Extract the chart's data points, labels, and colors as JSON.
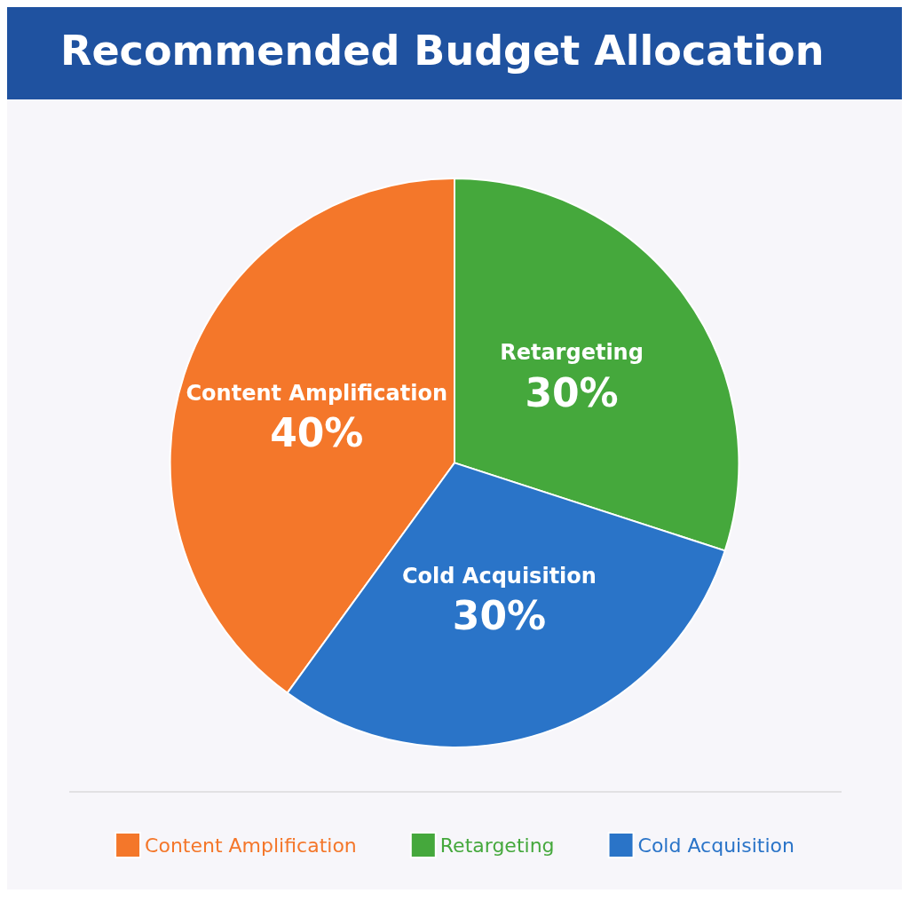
{
  "chart_data": {
    "type": "pie",
    "title": "Recommended Budget Allocation",
    "categories": [
      "Content Amplification",
      "Retargeting",
      "Cold Acquisition"
    ],
    "values": [
      40,
      30,
      30
    ],
    "value_labels": [
      "40%",
      "30%",
      "30%"
    ],
    "colors": [
      "#f4772a",
      "#45a83c",
      "#2a74c8"
    ],
    "legend": "bottom"
  }
}
